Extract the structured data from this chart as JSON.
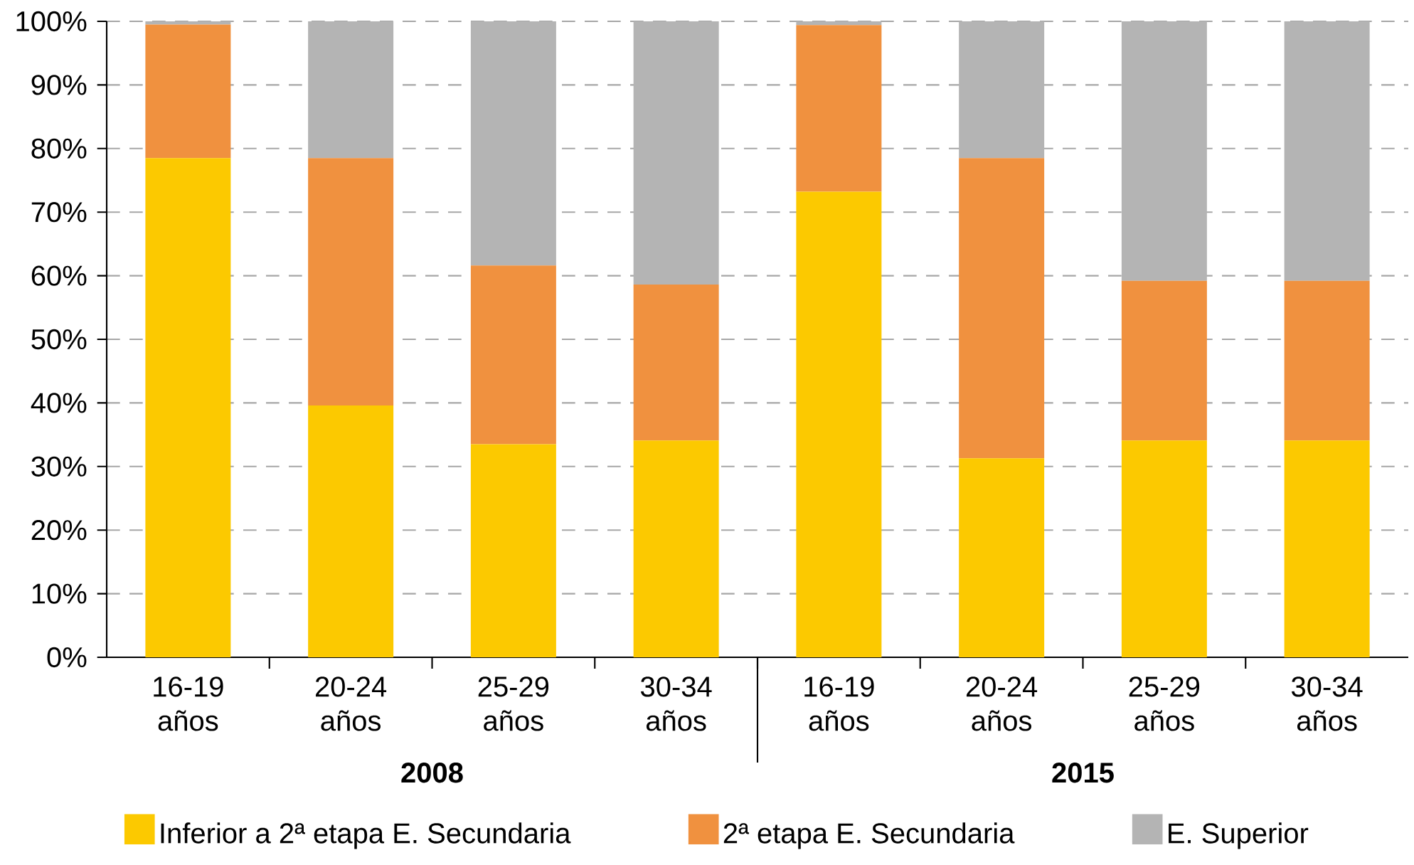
{
  "chart_data": {
    "type": "bar",
    "stacked": true,
    "categories": [
      "16-19 años",
      "20-24 años",
      "25-29 años",
      "30-34 años",
      "16-19 años",
      "20-24 años",
      "25-29 años",
      "30-34 años"
    ],
    "series": [
      {
        "name": "Inferior a 2ª etapa E. Secundaria",
        "color": "#fcc900",
        "values": [
          78.5,
          39.6,
          33.5,
          34.1,
          73.2,
          31.3,
          34.1,
          34.1
        ]
      },
      {
        "name": "2ª etapa E. Secundaria",
        "color": "#f0913f",
        "values": [
          21.0,
          38.9,
          28.1,
          24.5,
          26.2,
          47.2,
          25.1,
          25.1
        ]
      },
      {
        "name": "E. Superior",
        "color": "#b4b4b4",
        "values": [
          0.5,
          21.5,
          38.4,
          41.4,
          0.6,
          21.5,
          40.8,
          40.8
        ]
      }
    ],
    "ylim": [
      0,
      100
    ],
    "yticks": [
      {
        "value": 0,
        "label": "0%"
      },
      {
        "value": 10,
        "label": "10%"
      },
      {
        "value": 20,
        "label": "20%"
      },
      {
        "value": 30,
        "label": "30%"
      },
      {
        "value": 40,
        "label": "40%"
      },
      {
        "value": 50,
        "label": "50%"
      },
      {
        "value": 60,
        "label": "60%"
      },
      {
        "value": 70,
        "label": "70%"
      },
      {
        "value": 80,
        "label": "80%"
      },
      {
        "value": 90,
        "label": "90%"
      },
      {
        "value": 100,
        "label": "100%"
      }
    ],
    "grid": "y",
    "legend": "bottom",
    "annotations": [
      "2008",
      "2015"
    ]
  }
}
